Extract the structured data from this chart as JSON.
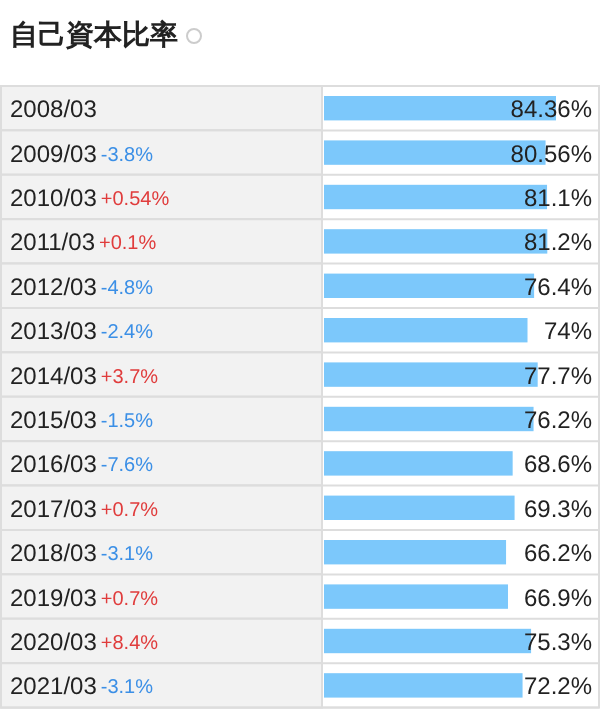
{
  "chart_data": {
    "type": "bar",
    "orientation": "horizontal",
    "title": "自己資本比率",
    "categories": [
      "2008/03",
      "2009/03",
      "2010/03",
      "2011/03",
      "2012/03",
      "2013/03",
      "2014/03",
      "2015/03",
      "2016/03",
      "2017/03",
      "2018/03",
      "2019/03",
      "2020/03",
      "2021/03"
    ],
    "values": [
      84.36,
      80.56,
      81.1,
      81.2,
      76.4,
      74,
      77.7,
      76.2,
      68.6,
      69.3,
      66.2,
      66.9,
      75.3,
      72.2
    ],
    "value_labels": [
      "84.36%",
      "80.56%",
      "81.1%",
      "81.2%",
      "76.4%",
      "74%",
      "77.7%",
      "76.2%",
      "68.6%",
      "69.3%",
      "66.2%",
      "66.9%",
      "75.3%",
      "72.2%"
    ],
    "color": "#7cc8fb",
    "tick_labels": "y",
    "annotations": [
      "-3.8%",
      "+0.54%",
      "+0.1%",
      "-4.8%",
      "-2.4%",
      "+3.7%",
      "-1.5%",
      "-7.6%",
      "+0.7%",
      "-3.1%",
      "+0.7%",
      "+8.4%",
      "-3.1%"
    ]
  }
}
